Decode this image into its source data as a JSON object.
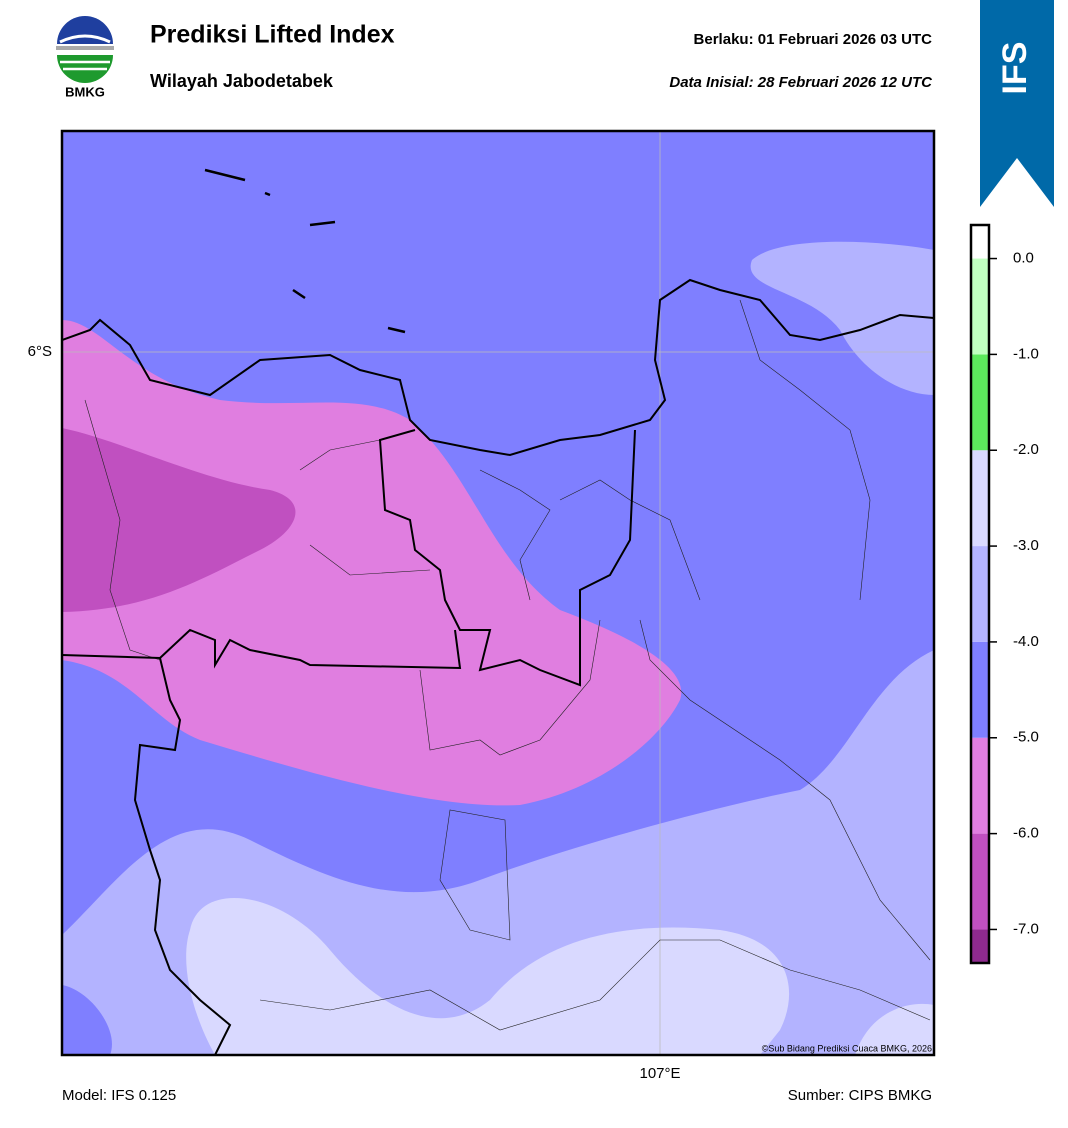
{
  "header": {
    "title": "Prediksi Lifted Index",
    "subtitle": "Wilayah Jabodetabek",
    "valid": "Berlaku:  01 Februari 2026 03 UTC",
    "init": "Data Inisial:  28 Februari 2026 12 UTC",
    "logo": "BMKG",
    "model_badge": "IFS"
  },
  "map": {
    "lat_label": "6°S",
    "lon_label": "107°E",
    "credit": "©Sub Bidang Prediksi Cuaca BMKG, 2026"
  },
  "colorbar": {
    "lim": [
      -7.35,
      0.35
    ],
    "bounds": [
      -7.35,
      -7,
      -6,
      -5,
      -4,
      -3,
      -2,
      -1,
      0,
      0.35
    ],
    "colors": [
      "#8e2a8e",
      "#c050c0",
      "#e07ee0",
      "#7f7fff",
      "#b3b3ff",
      "#d9d9ff",
      "#5de85d",
      "#c0ffc0",
      "#ffffff"
    ],
    "ticks": [
      {
        "value": 0,
        "label": "0.0"
      },
      {
        "value": -1,
        "label": "-1.0"
      },
      {
        "value": -2,
        "label": "-2.0"
      },
      {
        "value": -3,
        "label": "-3.0"
      },
      {
        "value": -4,
        "label": "-4.0"
      },
      {
        "value": -5,
        "label": "-5.0"
      },
      {
        "value": -6,
        "label": "-6.0"
      },
      {
        "value": -7,
        "label": "-7.0"
      }
    ]
  },
  "footer": {
    "model": "Model: IFS 0.125",
    "source": "Sumber: CIPS BMKG"
  }
}
